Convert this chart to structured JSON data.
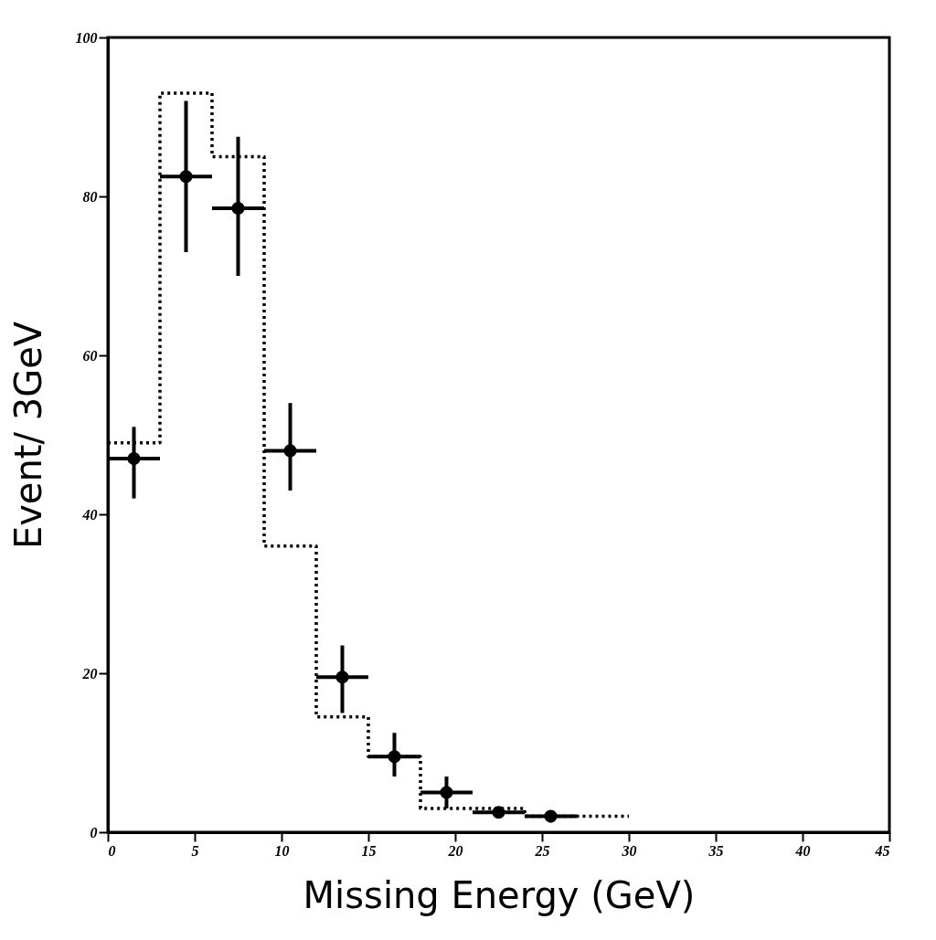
{
  "chart_data": {
    "type": "scatter",
    "xlabel": "Missing Energy (GeV)",
    "ylabel": "Event/ 3GeV",
    "xlim": [
      0,
      45
    ],
    "xticks": [
      0,
      5,
      10,
      15,
      20,
      25,
      30,
      35,
      40,
      45
    ],
    "ylim": [
      0,
      100
    ],
    "yticks": [
      0,
      20,
      40,
      60,
      80,
      100
    ],
    "grid": false,
    "series": [
      {
        "type": "step",
        "color": "#000000",
        "line_style": "dotted",
        "x": [
          0,
          3,
          6,
          9,
          12,
          15,
          18,
          21,
          24,
          27,
          30
        ],
        "values": [
          49,
          93,
          85,
          36,
          14.5,
          9.5,
          3,
          3,
          2,
          2,
          2
        ]
      },
      {
        "color": "#000000",
        "marker": "circle",
        "x": [
          1.5,
          4.5,
          7.5,
          10.5,
          13.5,
          16.5,
          19.5,
          22.5,
          25.5
        ],
        "values": [
          47,
          82.5,
          78.5,
          48,
          19.5,
          9.5,
          5,
          2.5,
          2
        ],
        "errors": [
          [
            42,
            51
          ],
          [
            73,
            92
          ],
          [
            70,
            87.5
          ],
          [
            43,
            54
          ],
          [
            15,
            23.5
          ],
          [
            7,
            12.5
          ],
          [
            3,
            7
          ],
          null,
          null
        ],
        "xerrors": [
          1.5,
          1.5,
          1.5,
          1.5,
          1.5,
          1.5,
          1.5,
          1.5,
          1.5
        ]
      }
    ]
  }
}
